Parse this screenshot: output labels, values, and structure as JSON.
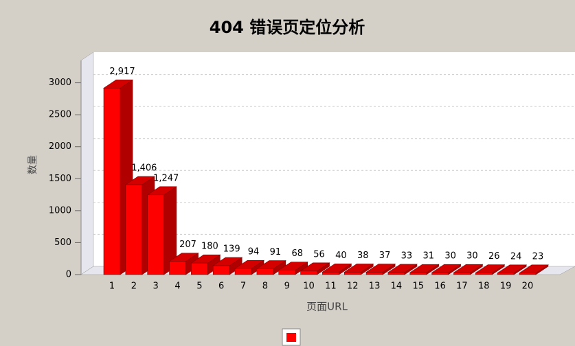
{
  "chart_data": {
    "type": "bar3d",
    "title": "404 错误页定位分析",
    "x_label": "页面URL",
    "y_label": "数量",
    "categories": [
      "1",
      "2",
      "3",
      "4",
      "5",
      "6",
      "7",
      "8",
      "9",
      "10",
      "11",
      "12",
      "13",
      "14",
      "15",
      "16",
      "17",
      "18",
      "19",
      "20"
    ],
    "values": [
      2917,
      1406,
      1247,
      207,
      180,
      139,
      94,
      91,
      68,
      56,
      40,
      38,
      37,
      33,
      31,
      30,
      30,
      26,
      24,
      23
    ],
    "value_labels": [
      "2,917",
      "1,406",
      "1,247",
      "207",
      "180",
      "139",
      "94",
      "91",
      "68",
      "56",
      "40",
      "38",
      "37",
      "33",
      "31",
      "30",
      "30",
      "26",
      "24",
      "23"
    ],
    "color": "#ff0000",
    "ylim": [
      0,
      3350
    ],
    "yticks": [
      0,
      500,
      1000,
      1500,
      2000,
      2500,
      3000
    ],
    "grid": true
  }
}
